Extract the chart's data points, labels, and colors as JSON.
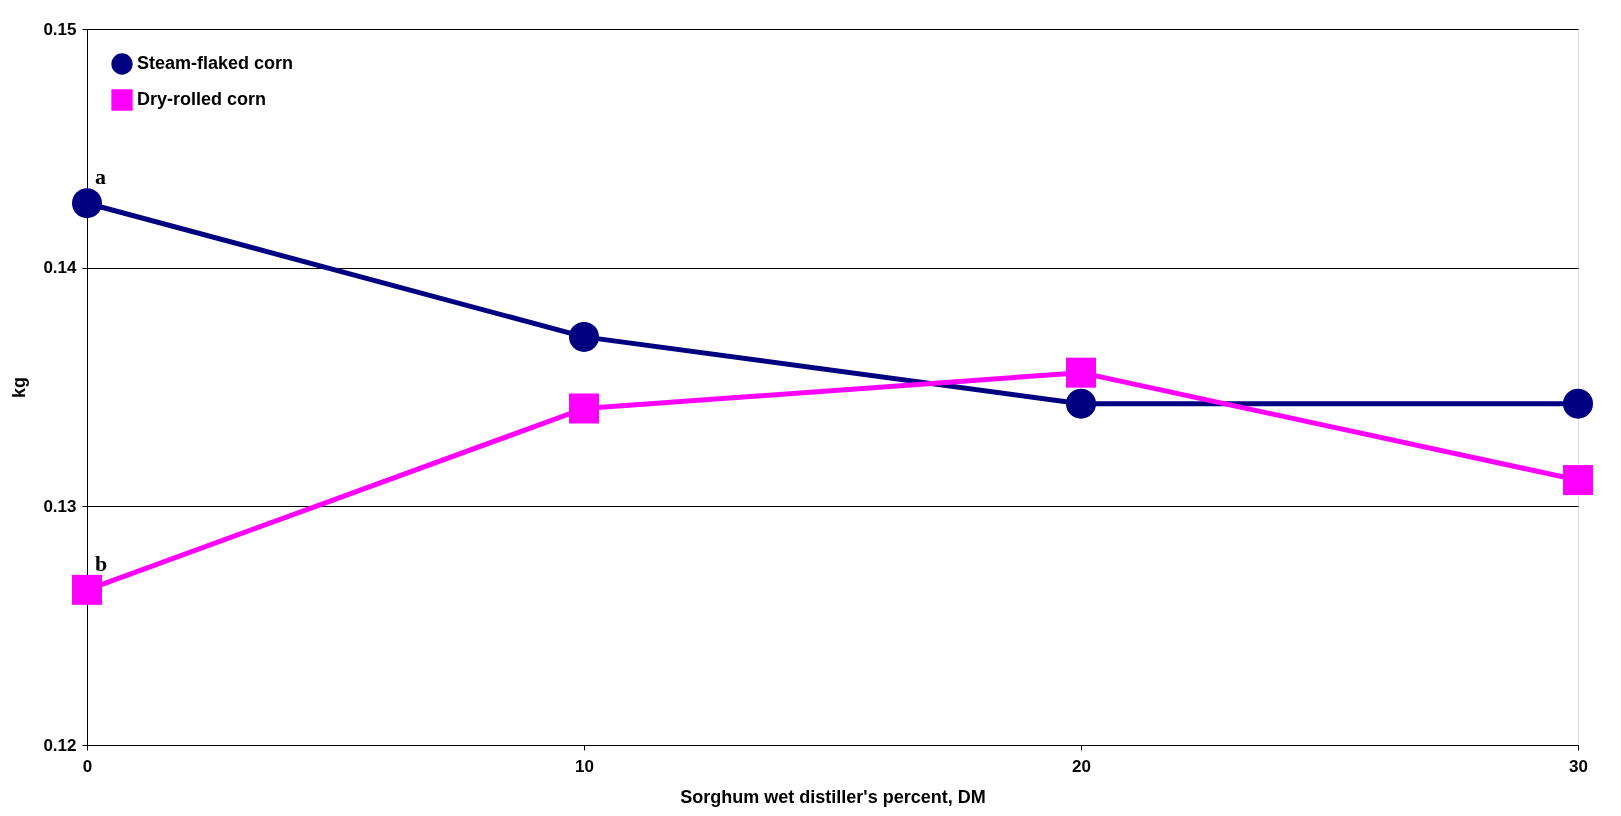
{
  "chart_data": {
    "type": "line",
    "xlabel": "Sorghum wet distiller's percent, DM",
    "ylabel": "kg",
    "x": [
      0,
      10,
      20,
      30
    ],
    "series": [
      {
        "name": "Steam-flaked corn",
        "color": "#000080",
        "marker": "circle",
        "values": [
          0.1427,
          0.1371,
          0.1343,
          0.1343
        ]
      },
      {
        "name": "Dry-rolled corn",
        "color": "#ff00ff",
        "marker": "square",
        "values": [
          0.1265,
          0.1341,
          0.1356,
          0.1311
        ]
      }
    ],
    "annotations": [
      {
        "text": "a",
        "x": 0,
        "y": 0.1427
      },
      {
        "text": "b",
        "x": 0,
        "y": 0.1265
      }
    ],
    "xlim": [
      0,
      30
    ],
    "xticks": [
      0,
      10,
      20,
      30
    ],
    "ylim": [
      0.12,
      0.15
    ],
    "yticks": [
      0.12,
      0.13,
      0.14,
      0.15
    ],
    "grid": "y",
    "legend": "top left",
    "line_style": "solid"
  }
}
